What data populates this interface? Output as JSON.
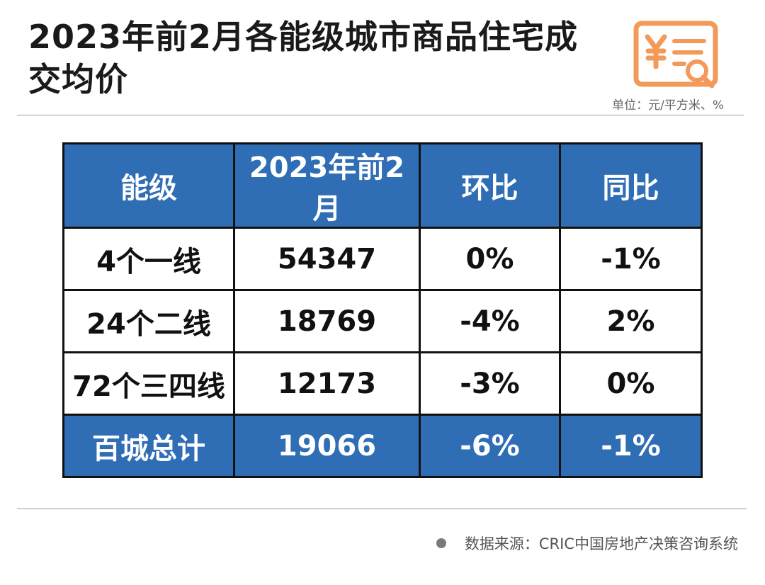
{
  "header": {
    "title": "2023年前2月各能级城市商品住宅成交均价",
    "unit": "单位：元/平方米、%",
    "logo_icon": "yuan-receipt-search-icon",
    "accent_color": "#f39a5a"
  },
  "chart_data": {
    "type": "table",
    "columns": [
      "能级",
      "2023年前2月",
      "环比",
      "同比"
    ],
    "rows": [
      [
        "4个一线",
        "54347",
        "0%",
        "-1%"
      ],
      [
        "24个二线",
        "18769",
        "-4%",
        "2%"
      ],
      [
        "72个三四线",
        "12173",
        "-3%",
        "0%"
      ]
    ],
    "total_row": [
      "百城总计",
      "19066",
      "-6%",
      "-1%"
    ],
    "header_color": "#2f6db5"
  },
  "footer": {
    "source": "数据来源：CRIC中国房地产决策咨询系统"
  }
}
